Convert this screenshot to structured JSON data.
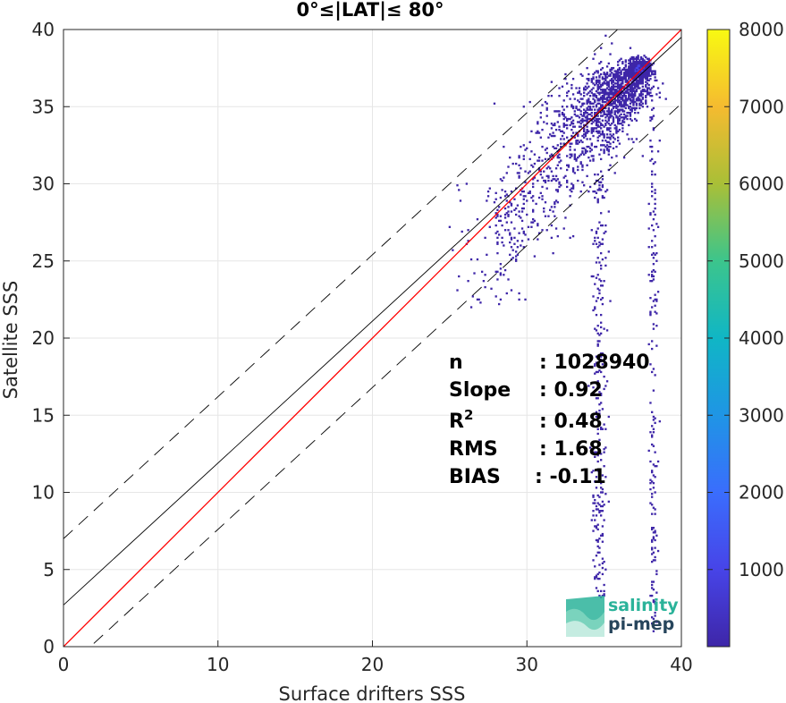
{
  "chart_data": {
    "type": "heatmap",
    "title": "0°≤|LAT|≤ 80°",
    "xlabel": "Surface drifters SSS",
    "ylabel": "Satellite SSS",
    "xlim": [
      0,
      40
    ],
    "ylim": [
      0,
      40
    ],
    "xticks": [
      "0",
      "10",
      "20",
      "30",
      "40"
    ],
    "yticks": [
      "0",
      "5",
      "10",
      "15",
      "20",
      "25",
      "30",
      "35",
      "40"
    ],
    "grid": true,
    "colorbar": {
      "colormap": "parula",
      "range": [
        0,
        8000
      ],
      "ticks": [
        "1000",
        "2000",
        "3000",
        "4000",
        "5000",
        "6000",
        "7000",
        "8000"
      ]
    },
    "lines": [
      {
        "role": "identity",
        "color": "#ff0000",
        "style": "solid",
        "slope": 1,
        "intercept": 0
      },
      {
        "role": "regression",
        "color": "#000000",
        "style": "solid",
        "slope": 0.92,
        "intercept": 2.7
      },
      {
        "role": "upper-bound",
        "color": "#000000",
        "style": "dashed",
        "slope": 0.92,
        "intercept": 7.0
      },
      {
        "role": "lower-bound",
        "color": "#000000",
        "style": "dashed",
        "slope": 0.92,
        "intercept": -1.6
      }
    ],
    "density_clusters": [
      {
        "x": 33.5,
        "y": 33.5,
        "spread": 1.6,
        "weight": 1500
      },
      {
        "x": 34.8,
        "y": 34.6,
        "spread": 1.2,
        "weight": 2500
      },
      {
        "x": 35.6,
        "y": 35.8,
        "spread": 1.0,
        "weight": 3000
      },
      {
        "x": 37.3,
        "y": 37.4,
        "spread": 0.35,
        "weight": 7800
      },
      {
        "x": 36.4,
        "y": 36.2,
        "spread": 0.8,
        "weight": 3500
      }
    ],
    "stats": [
      {
        "label": "n",
        "value": ": 1028940"
      },
      {
        "label": "Slope",
        "value": ": 0.92"
      },
      {
        "label": "R",
        "sup": "2",
        "value": ": 0.48"
      },
      {
        "label": "RMS",
        "value": ": 1.68"
      },
      {
        "label": "BIAS",
        "value": ": -0.11"
      }
    ]
  },
  "logo": {
    "line1": "salinity",
    "line2": "pi-mep"
  },
  "colors": {
    "identity_line": "#ff0000",
    "fit_line": "#000000",
    "logo_teal": "#2bb39a"
  }
}
